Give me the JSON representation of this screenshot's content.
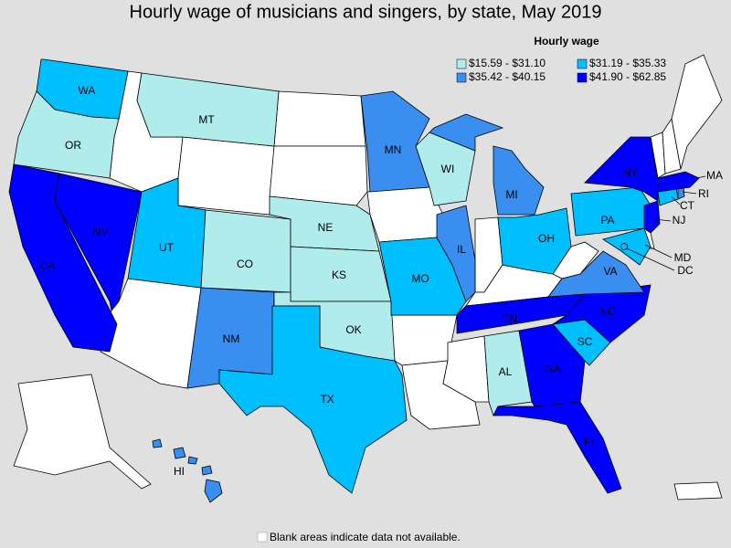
{
  "title": "Hourly wage of musicians and singers, by state, May 2019",
  "legend": {
    "title": "Hourly wage",
    "items": [
      {
        "label": "$15.59 - $31.10",
        "color": "#b0ecec"
      },
      {
        "label": "$31.19 - $35.33",
        "color": "#00bfff"
      },
      {
        "label": "$35.42 - $40.15",
        "color": "#3a8ef0"
      },
      {
        "label": "$41.90 - $62.85",
        "color": "#0000ff"
      }
    ]
  },
  "states": [
    {
      "label": "WA",
      "range": "$31.19 - $35.33"
    },
    {
      "label": "OR",
      "range": "$15.59 - $31.10"
    },
    {
      "label": "CA",
      "range": "$41.90 - $62.85"
    },
    {
      "label": "NV",
      "range": "$41.90 - $62.85"
    },
    {
      "label": "MT",
      "range": "$15.59 - $31.10"
    },
    {
      "label": "UT",
      "range": "$31.19 - $35.33"
    },
    {
      "label": "CO",
      "range": "$15.59 - $31.10"
    },
    {
      "label": "NM",
      "range": "$35.42 - $40.15"
    },
    {
      "label": "NE",
      "range": "$15.59 - $31.10"
    },
    {
      "label": "KS",
      "range": "$15.59 - $31.10"
    },
    {
      "label": "OK",
      "range": "$15.59 - $31.10"
    },
    {
      "label": "TX",
      "range": "$31.19 - $35.33"
    },
    {
      "label": "MN",
      "range": "$35.42 - $40.15"
    },
    {
      "label": "MO",
      "range": "$31.19 - $35.33"
    },
    {
      "label": "WI",
      "range": "$15.59 - $31.10"
    },
    {
      "label": "IL",
      "range": "$35.42 - $40.15"
    },
    {
      "label": "MI",
      "range": "$35.42 - $40.15"
    },
    {
      "label": "OH",
      "range": "$31.19 - $35.33"
    },
    {
      "label": "TN",
      "range": "$41.90 - $62.85"
    },
    {
      "label": "AL",
      "range": "$15.59 - $31.10"
    },
    {
      "label": "GA",
      "range": "$41.90 - $62.85"
    },
    {
      "label": "FL",
      "range": "$41.90 - $62.85"
    },
    {
      "label": "SC",
      "range": "$31.19 - $35.33"
    },
    {
      "label": "NC",
      "range": "$41.90 - $62.85"
    },
    {
      "label": "VA",
      "range": "$35.42 - $40.15"
    },
    {
      "label": "PA",
      "range": "$31.19 - $35.33"
    },
    {
      "label": "NY",
      "range": "$41.90 - $62.85"
    },
    {
      "label": "NJ",
      "range": "$41.90 - $62.85"
    },
    {
      "label": "MD",
      "range": "$31.19 - $35.33"
    },
    {
      "label": "DC",
      "range": "$31.19 - $35.33"
    },
    {
      "label": "CT",
      "range": "$31.19 - $35.33"
    },
    {
      "label": "RI",
      "range": "$35.42 - $40.15"
    },
    {
      "label": "MA",
      "range": "$41.90 - $62.85"
    },
    {
      "label": "HI",
      "range": "$35.42 - $40.15"
    }
  ],
  "note": "Blank areas indicate data not available."
}
